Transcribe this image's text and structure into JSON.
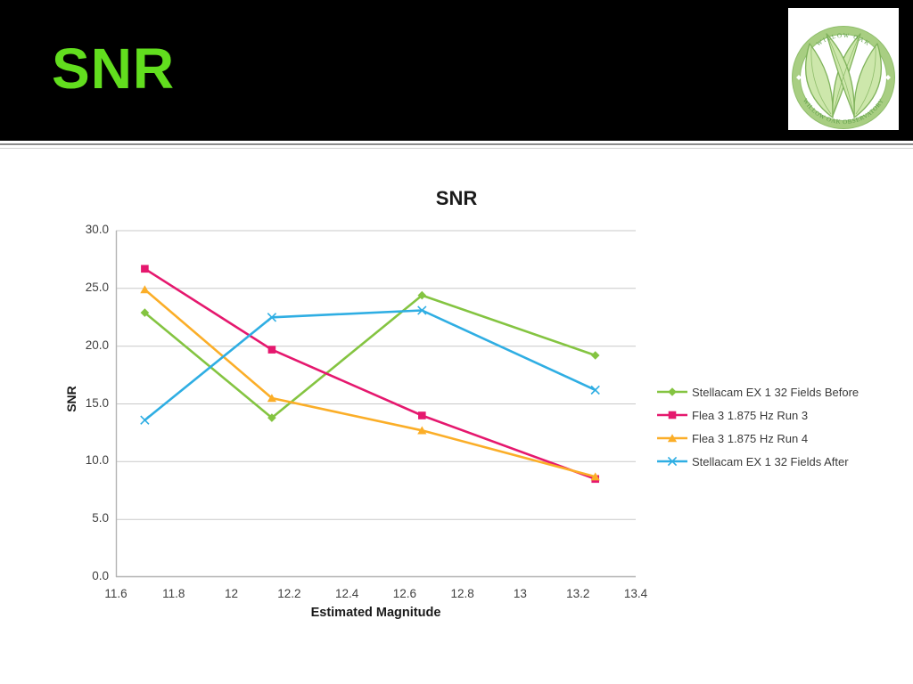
{
  "slide": {
    "title": "SNR",
    "title_color": "#62DE1E",
    "logo": {
      "monogram": "W",
      "ring_text_top": "WILLOW OAK",
      "ring_text_bottom": "WILLOW OAK OBSERVATORY",
      "ring_color": "#A8CE82",
      "leaf_fill": "#CDE7AB",
      "leaf_stroke": "#7FB25B"
    }
  },
  "chart_data": {
    "type": "line",
    "title": "SNR",
    "xlabel": "Estimated Magnitude",
    "ylabel": "SNR",
    "xlim": [
      11.6,
      13.4
    ],
    "ylim": [
      0,
      30
    ],
    "xticks": [
      11.6,
      11.8,
      12,
      12.2,
      12.4,
      12.6,
      12.8,
      13,
      13.2,
      13.4
    ],
    "xtick_labels": [
      "11.6",
      "11.8",
      "12",
      "12.2",
      "12.4",
      "12.6",
      "12.8",
      "13",
      "13.2",
      "13.4"
    ],
    "yticks": [
      0,
      5,
      10,
      15,
      20,
      25,
      30
    ],
    "ytick_labels": [
      "0.0",
      "5.0",
      "10.0",
      "15.0",
      "20.0",
      "25.0",
      "30.0"
    ],
    "grid": "horizontal",
    "grid_color": "#C9C9C9",
    "axis_color": "#B3B3B3",
    "legend_position": "right",
    "x": [
      11.7,
      12.14,
      12.66,
      13.26
    ],
    "series": [
      {
        "name": "Stellacam EX 1 32 Fields Before",
        "color": "#84C441",
        "marker": "diamond",
        "values": [
          22.9,
          13.8,
          24.4,
          19.2
        ]
      },
      {
        "name": "Flea 3 1.875 Hz Run 3",
        "color": "#E5186E",
        "marker": "square",
        "values": [
          26.7,
          19.7,
          14.0,
          8.5
        ]
      },
      {
        "name": "Flea 3 1.875 Hz Run 4",
        "color": "#FBAE28",
        "marker": "triangle",
        "values": [
          24.9,
          15.5,
          12.7,
          8.7
        ]
      },
      {
        "name": "Stellacam EX 1 32 Fields After",
        "color": "#2FAEE3",
        "marker": "x",
        "values": [
          13.6,
          22.5,
          23.1,
          16.2
        ]
      }
    ]
  }
}
